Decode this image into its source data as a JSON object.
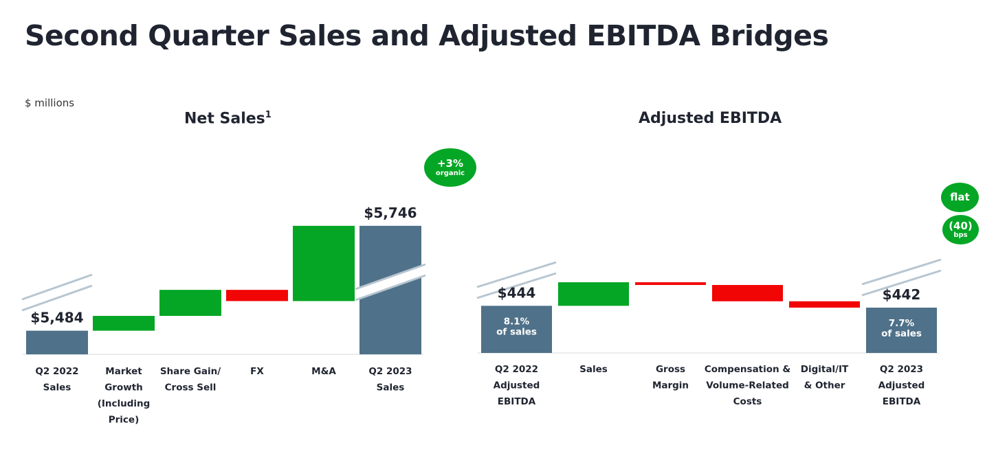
{
  "page": {
    "title": "Second Quarter Sales and Adjusted EBITDA Bridges",
    "units": "$ millions"
  },
  "colors": {
    "total": "#4f7189",
    "increase": "#05a625",
    "decrease": "#f20505",
    "text": "#1f2430"
  },
  "chart_data": [
    {
      "type": "bar",
      "subtype": "waterfall",
      "title": "Net Sales",
      "title_footnote": "1",
      "xlabel": "",
      "ylabel": "",
      "axis_break": true,
      "categories": [
        [
          "Q2 2022",
          "Sales"
        ],
        [
          "Market",
          "Growth",
          "(Including",
          "Price)"
        ],
        [
          "Share Gain/",
          "Cross Sell"
        ],
        [
          "FX"
        ],
        [
          "M&A"
        ],
        [
          "Q2 2023",
          "Sales"
        ]
      ],
      "bars": [
        {
          "kind": "total",
          "value": 5484,
          "label": "$5,484"
        },
        {
          "kind": "delta",
          "value": 37
        },
        {
          "kind": "delta",
          "value": 65
        },
        {
          "kind": "delta",
          "value": -28
        },
        {
          "kind": "delta",
          "value": 188
        },
        {
          "kind": "total",
          "value": 5746,
          "label": "$5,746"
        }
      ],
      "callouts": [
        {
          "big": "+3%",
          "small": "organic"
        }
      ]
    },
    {
      "type": "bar",
      "subtype": "waterfall",
      "title": "Adjusted EBITDA",
      "xlabel": "",
      "ylabel": "",
      "axis_break": true,
      "categories": [
        [
          "Q2 2022",
          "Adjusted",
          "EBITDA"
        ],
        [
          "Sales"
        ],
        [
          "Gross",
          "Margin"
        ],
        [
          "Compensation &",
          "Volume-Related",
          "Costs"
        ],
        [
          "Digital/IT",
          "& Other"
        ],
        [
          "Q2 2023",
          "Adjusted",
          "EBITDA"
        ]
      ],
      "bars": [
        {
          "kind": "total",
          "value": 444,
          "label": "$444",
          "sub": [
            "8.1%",
            "of sales"
          ]
        },
        {
          "kind": "delta",
          "value": 26
        },
        {
          "kind": "delta",
          "value": -3
        },
        {
          "kind": "delta",
          "value": -18
        },
        {
          "kind": "delta",
          "value": -7
        },
        {
          "kind": "total",
          "value": 442,
          "label": "$442",
          "sub": [
            "7.7%",
            "of sales"
          ]
        }
      ],
      "callouts": [
        {
          "big": "flat",
          "small": ""
        },
        {
          "big": "(40)",
          "small": "bps"
        }
      ]
    }
  ]
}
